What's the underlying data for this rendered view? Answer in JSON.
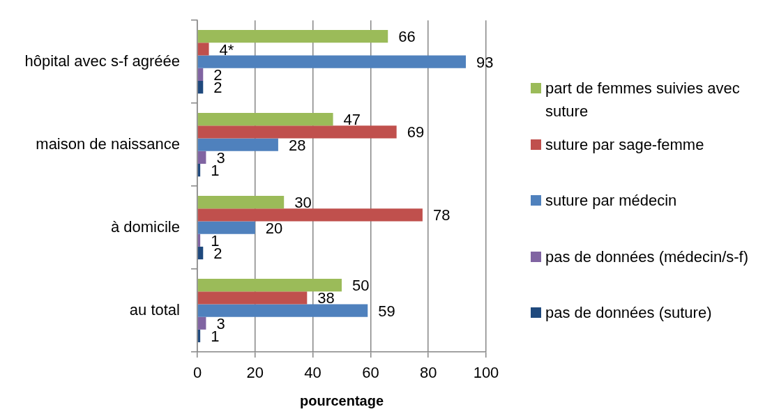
{
  "chart_data": {
    "type": "bar",
    "orientation": "horizontal",
    "categories": [
      "hôpital avec s-f agréée",
      "maison de naissance",
      "à domicile",
      "au total"
    ],
    "series": [
      {
        "name": "part de femmes suivies avec suture",
        "color": "#9bbb59",
        "values": [
          66,
          47,
          30,
          50
        ],
        "value_labels": [
          "66",
          "47",
          "30",
          "50"
        ]
      },
      {
        "name": "suture par sage-femme",
        "color": "#c0504d",
        "values": [
          4,
          69,
          78,
          38
        ],
        "value_labels": [
          "4*",
          "69",
          "78",
          "38"
        ]
      },
      {
        "name": "suture par médecin",
        "color": "#4f81bd",
        "values": [
          93,
          28,
          20,
          59
        ],
        "value_labels": [
          "93",
          "28",
          "20",
          "59"
        ]
      },
      {
        "name": "pas de données (médecin/s-f)",
        "color": "#8064a2",
        "values": [
          2,
          3,
          1,
          3
        ],
        "value_labels": [
          "2",
          "3",
          "1",
          "3"
        ]
      },
      {
        "name": "pas de données (suture)",
        "color": "#1f497d",
        "values": [
          2,
          1,
          2,
          1
        ],
        "value_labels": [
          "2",
          "1",
          "2",
          "1"
        ]
      }
    ],
    "xlim": [
      0,
      100
    ],
    "xticks": [
      0,
      20,
      40,
      60,
      80,
      100
    ],
    "xlabel": "pourcentage",
    "grid": "x",
    "legend": "right"
  }
}
